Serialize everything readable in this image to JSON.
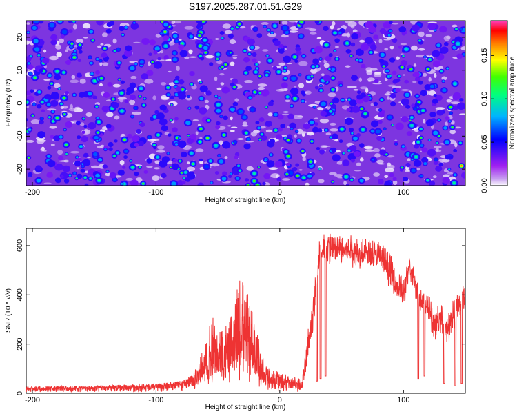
{
  "title": "S197.2025.287.01.51.G29",
  "chart_data": [
    {
      "type": "heatmap",
      "title": "S197.2025.287.01.51.G29",
      "xlabel": "Height of straight line (km)",
      "ylabel": "Frequency (Hz)",
      "xlim": [
        -205,
        150
      ],
      "ylim": [
        -25,
        25
      ],
      "xticks": [
        -200,
        -100,
        0,
        100
      ],
      "yticks": [
        -20,
        -10,
        0,
        10,
        20
      ],
      "colorbar": {
        "label": "Normalized spectral amplitude",
        "range": [
          0,
          0.19
        ],
        "ticks": [
          "0.00",
          "0.05",
          "0.10",
          "0.15"
        ],
        "colors": [
          "#ffffff",
          "#a020f0",
          "#0000ff",
          "#00b4ff",
          "#00ff7f",
          "#40ff00",
          "#ffff00",
          "#ff8000",
          "#ff0000",
          "#ff40c0"
        ]
      },
      "description_values": {
        "background_level": 0.02,
        "blob_range": [
          0.03,
          0.13
        ],
        "peak": {
          "x": 147,
          "y": -19,
          "value": 0.18
        }
      }
    },
    {
      "type": "line",
      "xlabel": "Height of straight line (km)",
      "ylabel": "SNR (10 * v/v)",
      "xlim": [
        -205,
        150
      ],
      "ylim": [
        0,
        670
      ],
      "xticks": [
        -200,
        -100,
        0,
        100
      ],
      "yticks": [
        0,
        200,
        400,
        600
      ],
      "line_color": "#ee3333",
      "series": [
        {
          "name": "SNR",
          "x": [
            -205,
            -150,
            -100,
            -80,
            -70,
            -62,
            -55,
            -50,
            -45,
            -40,
            -35,
            -30,
            -25,
            -20,
            -15,
            -10,
            -5,
            0,
            10,
            18,
            20,
            22,
            25,
            28,
            30,
            32,
            35,
            40,
            45,
            50,
            60,
            70,
            80,
            85,
            90,
            95,
            100,
            105,
            110,
            112,
            115,
            120,
            125,
            130,
            135,
            140,
            145,
            150
          ],
          "y": [
            18,
            20,
            25,
            35,
            50,
            80,
            110,
            130,
            110,
            150,
            170,
            210,
            170,
            140,
            70,
            60,
            55,
            45,
            35,
            25,
            80,
            160,
            250,
            380,
            430,
            540,
            560,
            580,
            570,
            580,
            570,
            560,
            550,
            520,
            470,
            420,
            400,
            500,
            440,
            380,
            360,
            350,
            260,
            300,
            240,
            300,
            360,
            380
          ],
          "low_min": [
            5,
            5,
            5,
            10,
            15,
            20,
            30,
            40,
            30,
            40,
            40,
            50,
            40,
            30,
            20,
            15,
            10,
            5,
            5,
            5,
            30,
            100,
            160,
            300,
            380,
            480,
            500,
            520,
            510,
            520,
            510,
            500,
            490,
            460,
            420,
            380,
            350,
            430,
            380,
            330,
            320,
            300,
            200,
            240,
            180,
            240,
            300,
            320
          ],
          "high_max": [
            30,
            32,
            38,
            50,
            80,
            200,
            330,
            240,
            290,
            300,
            410,
            520,
            380,
            320,
            160,
            110,
            100,
            85,
            70,
            60,
            130,
            240,
            340,
            460,
            520,
            640,
            660,
            660,
            650,
            650,
            640,
            630,
            620,
            600,
            560,
            500,
            470,
            560,
            500,
            440,
            420,
            410,
            330,
            380,
            310,
            380,
            440,
            450
          ],
          "dropouts": [
            [
              30,
              50
            ],
            [
              33,
              60
            ],
            [
              37,
              70
            ],
            [
              112,
              60
            ],
            [
              117,
              70
            ],
            [
              133,
              40
            ],
            [
              142,
              30
            ],
            [
              147,
              40
            ]
          ]
        }
      ]
    }
  ]
}
